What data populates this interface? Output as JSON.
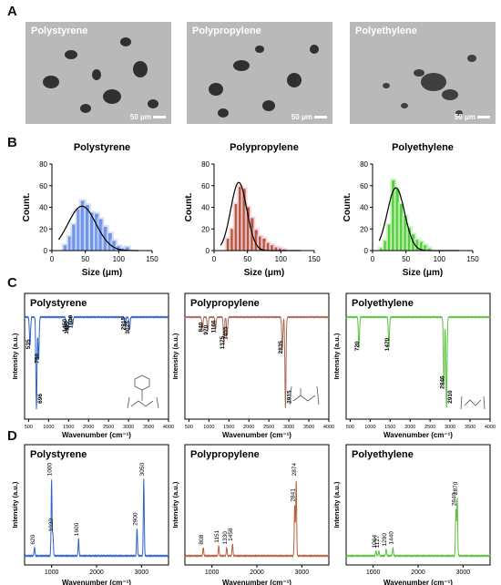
{
  "panel_letters": {
    "a": "A",
    "b": "B",
    "c": "C",
    "d": "D"
  },
  "micrographs": [
    {
      "label": "Polystyrene",
      "scale": "50 μm"
    },
    {
      "label": "Polypropylene",
      "scale": "50 μm"
    },
    {
      "label": "Polyethylene",
      "scale": "50 μm"
    }
  ],
  "chart_data": [
    {
      "type": "bar",
      "panel": "B",
      "title": "Polystyrene",
      "xlabel": "Size (μm)",
      "ylabel": "Count.",
      "xlim": [
        0,
        150
      ],
      "ylim": [
        0,
        80
      ],
      "xticks": [
        0,
        50,
        100,
        150
      ],
      "yticks": [
        0,
        20,
        40,
        60,
        80
      ],
      "bin_centers": [
        20,
        27,
        33,
        40,
        46,
        53,
        60,
        67,
        73,
        80,
        87,
        93,
        100,
        107,
        113
      ],
      "values": [
        5,
        13,
        24,
        38,
        46,
        42,
        35,
        34,
        29,
        22,
        16,
        9,
        4,
        2,
        3
      ],
      "fit_curve": {
        "mean": 45,
        "sd": 21,
        "peak": 41
      },
      "color": "#6f95e8",
      "shade": "#c9d6f4",
      "curve_color": "#000000"
    },
    {
      "type": "bar",
      "panel": "B",
      "title": "Polypropylene",
      "xlabel": "Size (μm)",
      "ylabel": "Count.",
      "xlim": [
        0,
        150
      ],
      "ylim": [
        0,
        80
      ],
      "xticks": [
        0,
        50,
        100,
        150
      ],
      "yticks": [
        0,
        20,
        40,
        60,
        80
      ],
      "bin_centers": [
        21,
        27,
        33,
        39,
        45,
        51,
        57,
        63,
        69,
        75,
        81,
        87,
        93,
        99,
        105
      ],
      "values": [
        11,
        20,
        43,
        59,
        57,
        40,
        30,
        19,
        13,
        11,
        7,
        5,
        3,
        2,
        1
      ],
      "fit_curve": {
        "mean": 37,
        "sd": 12,
        "peak": 63
      },
      "color": "#b25a3c",
      "shade": "#f6c8d8",
      "curve_color": "#000000"
    },
    {
      "type": "bar",
      "panel": "B",
      "title": "Polyethylene",
      "xlabel": "Size (μm)",
      "ylabel": "Count.",
      "xlim": [
        0,
        150
      ],
      "ylim": [
        0,
        80
      ],
      "xticks": [
        0,
        50,
        100,
        150
      ],
      "yticks": [
        0,
        20,
        40,
        60,
        80
      ],
      "bin_centers": [
        13,
        19,
        25,
        31,
        37,
        43,
        49,
        55,
        61,
        67,
        73,
        79,
        85
      ],
      "values": [
        2,
        9,
        24,
        65,
        57,
        43,
        32,
        21,
        15,
        10,
        8,
        5,
        2
      ],
      "fit_curve": {
        "mean": 35,
        "sd": 13,
        "peak": 58
      },
      "color": "#52d13c",
      "shade": "#c6f0b8",
      "curve_color": "#000000"
    },
    {
      "type": "line",
      "panel": "C",
      "title": "Polystyrene",
      "xlabel": "Wavenumber (cm⁻¹)",
      "ylabel": "Intensity (a.u.)",
      "xlim": [
        400,
        4000
      ],
      "xticks": [
        500,
        1000,
        1500,
        2000,
        2500,
        3000,
        3500,
        4000
      ],
      "color": "#2f64c9",
      "peaks": [
        {
          "x": 535,
          "depth": 0.3,
          "label": "535"
        },
        {
          "x": 696,
          "depth": 0.97,
          "label": "696"
        },
        {
          "x": 750,
          "depth": 0.45,
          "label": "750"
        },
        {
          "x": 1450,
          "depth": 0.12,
          "label": "1450"
        },
        {
          "x": 1490,
          "depth": 0.14,
          "label": "1490"
        },
        {
          "x": 1600,
          "depth": 0.08,
          "label": "1600"
        },
        {
          "x": 2915,
          "depth": 0.1,
          "label": "2915"
        },
        {
          "x": 3025,
          "depth": 0.14,
          "label": "3025"
        }
      ]
    },
    {
      "type": "line",
      "panel": "C",
      "title": "Polypropylene",
      "xlabel": "Wavenumber (cm⁻¹)",
      "ylabel": "Intensity (a.u.)",
      "xlim": [
        400,
        4000
      ],
      "xticks": [
        500,
        1000,
        1500,
        2000,
        2500,
        3000,
        3500,
        4000
      ],
      "color": "#a86a54",
      "peaks": [
        {
          "x": 840,
          "depth": 0.12,
          "label": "840"
        },
        {
          "x": 970,
          "depth": 0.15,
          "label": "970"
        },
        {
          "x": 1166,
          "depth": 0.13,
          "label": "1166"
        },
        {
          "x": 1375,
          "depth": 0.3,
          "label": "1375"
        },
        {
          "x": 1455,
          "depth": 0.2,
          "label": "1455"
        },
        {
          "x": 2835,
          "depth": 0.35,
          "label": "2835"
        },
        {
          "x": 2915,
          "depth": 0.97,
          "label": "2915"
        }
      ]
    },
    {
      "type": "line",
      "panel": "C",
      "title": "Polyethylene",
      "xlabel": "Wavenumber (cm⁻¹)",
      "ylabel": "Intensity (a.u.)",
      "xlim": [
        400,
        4000
      ],
      "xticks": [
        500,
        1000,
        1500,
        2000,
        2500,
        3000,
        3500,
        4000
      ],
      "color": "#5cc03c",
      "peaks": [
        {
          "x": 720,
          "depth": 0.32,
          "label": "720"
        },
        {
          "x": 1470,
          "depth": 0.32,
          "label": "1470"
        },
        {
          "x": 2846,
          "depth": 0.72,
          "label": "2846"
        },
        {
          "x": 2910,
          "depth": 0.97,
          "label": "2910"
        }
      ]
    },
    {
      "type": "line",
      "panel": "D",
      "title": "Polystyrene",
      "xlabel": "Wavenumber (cm⁻¹)",
      "ylabel": "Intensity (a.u.)",
      "xlim": [
        400,
        3600
      ],
      "xticks": [
        1000,
        2000,
        3000
      ],
      "color": "#2f64c9",
      "peaks": [
        {
          "x": 620,
          "height": 0.1,
          "label": "620"
        },
        {
          "x": 1000,
          "height": 0.9,
          "label": "1000"
        },
        {
          "x": 1030,
          "height": 0.25,
          "label": "1030"
        },
        {
          "x": 1600,
          "height": 0.2,
          "label": "1600"
        },
        {
          "x": 2900,
          "height": 0.32,
          "label": "2900"
        },
        {
          "x": 3050,
          "height": 0.9,
          "label": "3050"
        }
      ]
    },
    {
      "type": "line",
      "panel": "D",
      "title": "Polypropylene",
      "xlabel": "Wavenumber (cm⁻¹)",
      "ylabel": "Intensity (a.u.)",
      "xlim": [
        400,
        3600
      ],
      "xticks": [
        1000,
        2000,
        3000
      ],
      "color": "#b3623f",
      "peaks": [
        {
          "x": 808,
          "height": 0.1,
          "label": "808"
        },
        {
          "x": 1151,
          "height": 0.12,
          "label": "1151"
        },
        {
          "x": 1330,
          "height": 0.1,
          "label": "1330"
        },
        {
          "x": 1458,
          "height": 0.14,
          "label": "1458"
        },
        {
          "x": 2841,
          "height": 0.6,
          "label": "2841"
        },
        {
          "x": 2874,
          "height": 0.9,
          "label": "2874"
        }
      ]
    },
    {
      "type": "line",
      "panel": "D",
      "title": "Polyethylene",
      "xlabel": "Wavenumber (cm⁻¹)",
      "ylabel": "Intensity (a.u.)",
      "xlim": [
        400,
        3600
      ],
      "xticks": [
        1000,
        2000,
        3000
      ],
      "color": "#5cc03c",
      "peaks": [
        {
          "x": 1064,
          "height": 0.06,
          "label": "1064"
        },
        {
          "x": 1127,
          "height": 0.06,
          "label": "1127"
        },
        {
          "x": 1290,
          "height": 0.08,
          "label": "1290"
        },
        {
          "x": 1440,
          "height": 0.1,
          "label": "1440"
        },
        {
          "x": 2840,
          "height": 0.55,
          "label": "2840"
        },
        {
          "x": 2870,
          "height": 0.68,
          "label": "2870"
        }
      ]
    }
  ]
}
